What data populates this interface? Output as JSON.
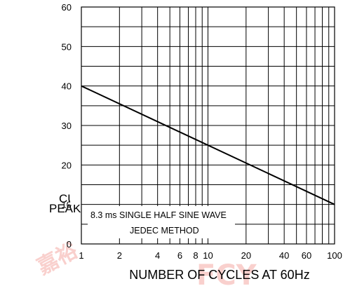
{
  "chart_data": {
    "type": "line",
    "xscale": "log",
    "xlim": [
      1,
      100
    ],
    "ylim": [
      0,
      60
    ],
    "grid": true,
    "x_ticks": [
      "1",
      "2",
      "4",
      "6",
      "8",
      "10",
      "20",
      "40",
      "60",
      "100"
    ],
    "x_tick_values": [
      1,
      2,
      4,
      6,
      8,
      10,
      20,
      40,
      60,
      100
    ],
    "y_ticks": [
      "0",
      "10",
      "20",
      "30",
      "40",
      "50",
      "60"
    ],
    "y_tick_values": [
      0,
      10,
      20,
      30,
      40,
      50,
      60
    ],
    "xlabel": "NUMBER OF CYCLES AT 60Hz",
    "ylabel_lines": [
      "CUI",
      "PEAK"
    ],
    "series": [
      {
        "x": [
          1,
          100
        ],
        "y": [
          40,
          10
        ]
      }
    ],
    "annotations": [
      "8.3 ms SINGLE HALF SINE WAVE",
      "JEDEC METHOD"
    ],
    "colors": {
      "line": "#000000",
      "grid": "#000000",
      "watermark": "#e8463c"
    }
  }
}
